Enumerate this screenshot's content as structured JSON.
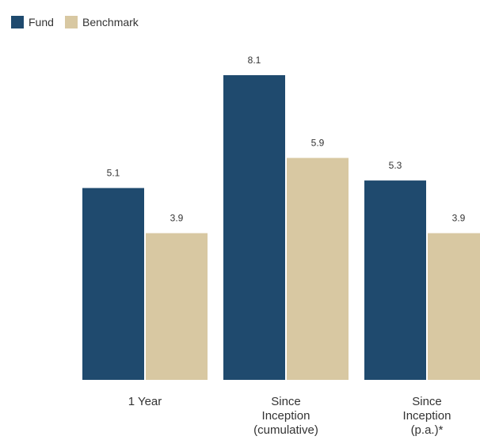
{
  "chart_data": {
    "type": "bar",
    "title": "",
    "xlabel": "",
    "ylabel": "",
    "categories": [
      [
        "1 Year"
      ],
      [
        "Since",
        "Inception",
        "(cumulative)"
      ],
      [
        "Since",
        "Inception",
        "(p.a.)*"
      ]
    ],
    "series": [
      {
        "name": "Fund",
        "color": "#1f4a6e",
        "values": [
          5.1,
          8.1,
          5.3
        ]
      },
      {
        "name": "Benchmark",
        "color": "#d8c8a2",
        "values": [
          3.9,
          5.9,
          3.9
        ]
      }
    ],
    "ylim": [
      0,
      8.1
    ],
    "grid": false,
    "legend_position": "top-left",
    "data_labels": true
  }
}
